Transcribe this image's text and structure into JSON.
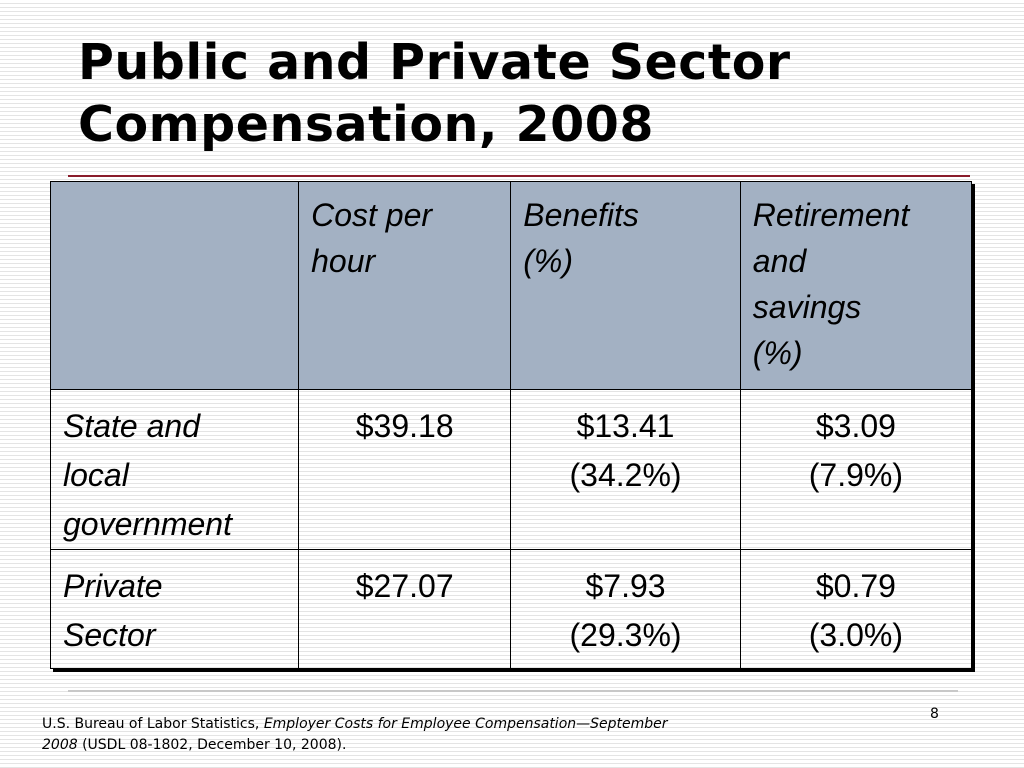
{
  "slide": {
    "title_line1": "Public and Private Sector",
    "title_line2": "Compensation, 2008",
    "page_number": "8"
  },
  "table": {
    "headers": {
      "cost": {
        "line1": "Cost per",
        "line2": "hour"
      },
      "benefits": {
        "line1": "Benefits",
        "unit": "(%)"
      },
      "retirement": {
        "line1": "Retirement",
        "line2": "and",
        "line3": "savings",
        "unit": "(%)"
      }
    },
    "rows": [
      {
        "label": [
          "State and",
          "local",
          "government"
        ],
        "cost_per_hour": "$39.18",
        "benefits": "$13.41",
        "benefits_pct": "(34.2%)",
        "retirement": "$3.09",
        "retirement_pct": "(7.9%)"
      },
      {
        "label": [
          "Private",
          "Sector"
        ],
        "cost_per_hour": "$27.07",
        "benefits": "$7.93",
        "benefits_pct": "(29.3%)",
        "retirement": "$0.79",
        "retirement_pct": "(3.0%)"
      }
    ]
  },
  "footnote": {
    "prefix": "U.S. Bureau of Labor Statistics, ",
    "title_italic_1": "Employer Costs for Employee Compensation—September",
    "title_italic_2": "2008",
    "suffix": " (USDL 08-1802, December 10, 2008)."
  },
  "colors": {
    "header_fill": "#a3b1c3",
    "title_rule": "#8a1c2b"
  }
}
